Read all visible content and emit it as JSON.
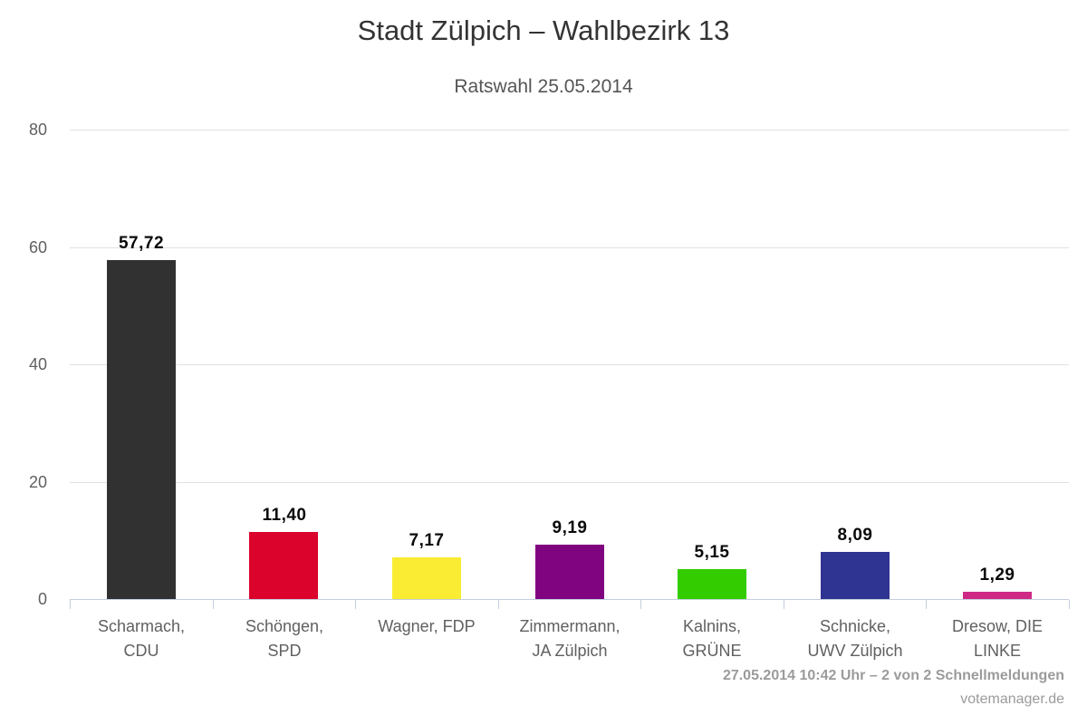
{
  "chart_data": {
    "type": "bar",
    "title": "Stadt Zülpich – Wahlbezirk 13",
    "subtitle": "Ratswahl 25.05.2014",
    "xlabel": "",
    "ylabel": "",
    "ylim": [
      0,
      80
    ],
    "yticks": [
      0,
      20,
      40,
      60,
      80
    ],
    "grid": true,
    "legend": "none",
    "categories": [
      "Scharmach, CDU",
      "Schöngen, SPD",
      "Wagner, FDP",
      "Zimmermann, JA Zülpich",
      "Kalnins, GRÜNE",
      "Schnicke, UWV Zülpich",
      "Dresow, DIE LINKE"
    ],
    "category_label_lines": [
      [
        "Scharmach,",
        "CDU"
      ],
      [
        "Schöngen,",
        "SPD"
      ],
      [
        "Wagner, FDP"
      ],
      [
        "Zimmermann,",
        "JA Zülpich"
      ],
      [
        "Kalnins,",
        "GRÜNE"
      ],
      [
        "Schnicke,",
        "UWV Zülpich"
      ],
      [
        "Dresow, DIE",
        "LINKE"
      ]
    ],
    "values": [
      57.72,
      11.4,
      7.17,
      9.19,
      5.15,
      8.09,
      1.29
    ],
    "value_labels": [
      "57,72",
      "11,40",
      "7,17",
      "9,19",
      "5,15",
      "8,09",
      "1,29"
    ],
    "bar_colors": [
      "#313131",
      "#DB022C",
      "#F9EC32",
      "#800380",
      "#33CC00",
      "#2F3391",
      "#CF2986"
    ],
    "grid_color": "#E1E1E1",
    "axis_color": "#C3CEDD",
    "axis_label_color": "#606060",
    "value_label_color": "#0A0A0A"
  },
  "credits": {
    "status_line": "27.05.2014 10:42 Uhr – 2 von 2 Schnellmeldungen",
    "brand": "votemanager.de"
  }
}
